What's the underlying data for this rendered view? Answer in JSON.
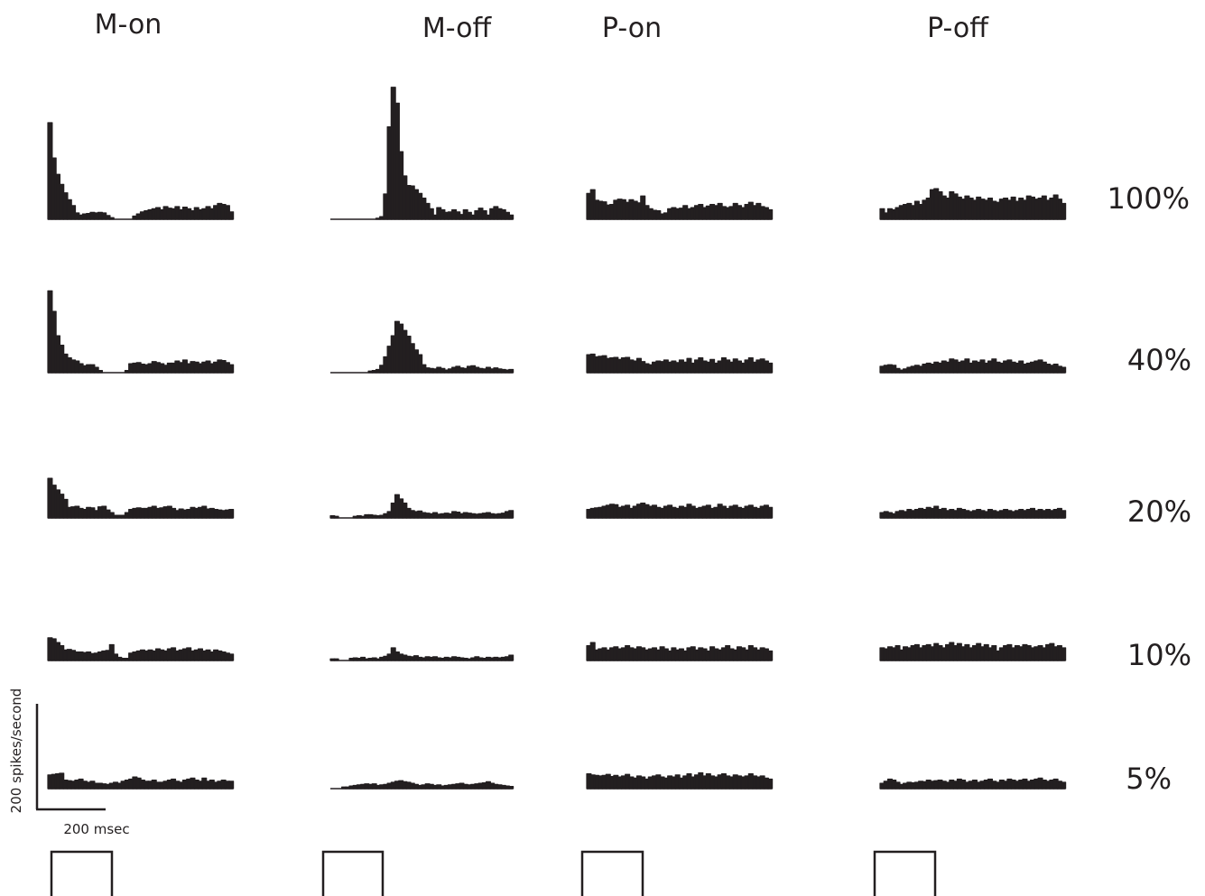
{
  "chart_data": {
    "type": "bar",
    "columns": [
      "M-on",
      "M-off",
      "P-on",
      "P-off"
    ],
    "rows": [
      "100%",
      "40%",
      "20%",
      "10%",
      "5%"
    ],
    "scale_bar": {
      "y_label": "200 spikes/second",
      "y_value": 200,
      "x_label": "200 msec",
      "x_value": 200
    },
    "bins_per_histogram": 48,
    "stimulus_marker": "square",
    "style": {
      "bar_color": "#231f20",
      "background": "#ffffff"
    },
    "histograms": [
      {
        "column": "M-on",
        "row": "100%",
        "values": [
          183,
          116,
          85,
          66,
          50,
          37,
          26,
          12,
          8,
          10,
          11,
          13,
          12,
          13,
          12,
          7,
          3,
          0,
          0,
          0,
          0,
          0,
          6,
          10,
          14,
          16,
          18,
          20,
          22,
          18,
          24,
          21,
          20,
          24,
          18,
          23,
          20,
          16,
          22,
          18,
          20,
          24,
          20,
          26,
          30,
          28,
          26,
          14
        ]
      },
      {
        "column": "M-off",
        "row": "100%",
        "values": [
          0,
          0,
          0,
          0,
          0,
          0,
          0,
          0,
          0,
          0,
          0,
          0,
          2,
          5,
          48,
          175,
          250,
          220,
          128,
          82,
          64,
          63,
          56,
          49,
          40,
          30,
          20,
          8,
          22,
          18,
          13,
          14,
          18,
          14,
          9,
          18,
          13,
          8,
          16,
          21,
          16,
          8,
          20,
          24,
          20,
          18,
          13,
          8
        ]
      },
      {
        "column": "P-on",
        "row": "100%",
        "values": [
          49,
          56,
          36,
          34,
          33,
          27,
          28,
          36,
          38,
          37,
          32,
          37,
          34,
          31,
          44,
          26,
          20,
          17,
          16,
          10,
          12,
          20,
          22,
          20,
          21,
          26,
          20,
          22,
          26,
          28,
          22,
          25,
          28,
          26,
          30,
          24,
          22,
          24,
          30,
          26,
          22,
          28,
          32,
          26,
          30,
          24,
          22,
          18
        ]
      },
      {
        "column": "P-off",
        "row": "100%",
        "values": [
          20,
          12,
          20,
          18,
          22,
          26,
          28,
          30,
          26,
          34,
          28,
          36,
          40,
          56,
          58,
          52,
          44,
          40,
          52,
          48,
          42,
          38,
          44,
          40,
          36,
          42,
          38,
          36,
          40,
          34,
          32,
          38,
          40,
          36,
          42,
          34,
          40,
          36,
          44,
          42,
          38,
          40,
          44,
          36,
          40,
          46,
          38,
          30
        ]
      },
      {
        "column": "M-on",
        "row": "40%",
        "values": [
          155,
          116,
          70,
          52,
          35,
          28,
          24,
          22,
          17,
          13,
          15,
          15,
          10,
          4,
          0,
          0,
          0,
          0,
          0,
          0,
          4,
          17,
          18,
          19,
          16,
          15,
          17,
          21,
          19,
          17,
          14,
          18,
          18,
          22,
          19,
          24,
          17,
          21,
          20,
          17,
          20,
          22,
          17,
          20,
          24,
          23,
          19,
          15
        ]
      },
      {
        "column": "M-off",
        "row": "40%",
        "values": [
          0,
          0,
          0,
          0,
          0,
          0,
          0,
          0,
          0,
          0,
          3,
          4,
          6,
          14,
          30,
          50,
          70,
          97,
          92,
          80,
          69,
          55,
          43,
          34,
          15,
          9,
          8,
          7,
          10,
          8,
          5,
          7,
          10,
          12,
          9,
          8,
          12,
          13,
          10,
          8,
          7,
          10,
          7,
          9,
          7,
          6,
          5,
          6
        ]
      },
      {
        "column": "P-on",
        "row": "40%",
        "values": [
          34,
          35,
          30,
          31,
          32,
          27,
          28,
          29,
          25,
          28,
          29,
          24,
          22,
          27,
          21,
          17,
          15,
          20,
          22,
          21,
          24,
          20,
          22,
          19,
          24,
          20,
          27,
          18,
          24,
          28,
          22,
          20,
          25,
          18,
          22,
          28,
          24,
          20,
          26,
          22,
          18,
          24,
          28,
          20,
          24,
          26,
          22,
          18
        ]
      },
      {
        "column": "P-off",
        "row": "40%",
        "values": [
          12,
          14,
          15,
          14,
          8,
          5,
          7,
          10,
          12,
          14,
          12,
          16,
          18,
          16,
          20,
          18,
          22,
          20,
          26,
          24,
          20,
          22,
          26,
          18,
          22,
          20,
          24,
          18,
          22,
          26,
          20,
          18,
          22,
          24,
          20,
          18,
          22,
          16,
          18,
          20,
          22,
          24,
          20,
          16,
          14,
          16,
          12,
          10
        ]
      },
      {
        "column": "M-on",
        "row": "20%",
        "values": [
          75,
          62,
          53,
          45,
          35,
          20,
          21,
          22,
          18,
          16,
          20,
          19,
          14,
          21,
          22,
          15,
          10,
          5,
          5,
          5,
          10,
          16,
          18,
          19,
          18,
          18,
          20,
          22,
          18,
          19,
          21,
          22,
          18,
          14,
          17,
          15,
          16,
          20,
          18,
          20,
          22,
          17,
          18,
          16,
          15,
          14,
          15,
          16
        ]
      },
      {
        "column": "M-off",
        "row": "20%",
        "values": [
          4,
          3,
          0,
          0,
          0,
          0,
          3,
          4,
          3,
          6,
          6,
          5,
          4,
          5,
          8,
          12,
          28,
          44,
          36,
          28,
          18,
          14,
          12,
          13,
          10,
          9,
          8,
          10,
          7,
          8,
          9,
          8,
          12,
          11,
          8,
          10,
          9,
          8,
          7,
          8,
          9,
          10,
          8,
          7,
          8,
          9,
          12,
          14
        ]
      },
      {
        "column": "P-on",
        "row": "20%",
        "values": [
          16,
          18,
          19,
          20,
          22,
          24,
          26,
          25,
          20,
          22,
          24,
          18,
          22,
          26,
          28,
          25,
          22,
          24,
          20,
          18,
          22,
          24,
          20,
          18,
          22,
          20,
          26,
          22,
          18,
          20,
          22,
          24,
          18,
          20,
          26,
          22,
          18,
          22,
          24,
          20,
          18,
          22,
          24,
          20,
          18,
          22,
          24,
          20
        ]
      },
      {
        "column": "P-off",
        "row": "20%",
        "values": [
          10,
          12,
          10,
          8,
          12,
          14,
          12,
          16,
          14,
          16,
          18,
          16,
          20,
          18,
          22,
          16,
          18,
          14,
          16,
          14,
          18,
          16,
          14,
          12,
          14,
          16,
          14,
          12,
          16,
          14,
          12,
          14,
          16,
          14,
          12,
          14,
          16,
          14,
          16,
          18,
          14,
          16,
          14,
          16,
          14,
          16,
          18,
          14
        ]
      },
      {
        "column": "M-on",
        "row": "10%",
        "values": [
          43,
          41,
          34,
          28,
          20,
          21,
          19,
          16,
          16,
          15,
          16,
          13,
          14,
          16,
          18,
          19,
          30,
          12,
          6,
          4,
          4,
          14,
          16,
          18,
          20,
          18,
          20,
          18,
          22,
          20,
          18,
          22,
          24,
          18,
          20,
          22,
          24,
          18,
          20,
          22,
          18,
          20,
          16,
          20,
          18,
          16,
          14,
          12
        ]
      },
      {
        "column": "M-off",
        "row": "10%",
        "values": [
          3,
          3,
          0,
          0,
          0,
          4,
          5,
          4,
          6,
          3,
          4,
          5,
          3,
          6,
          8,
          12,
          24,
          16,
          12,
          10,
          8,
          7,
          9,
          6,
          5,
          7,
          6,
          7,
          5,
          4,
          6,
          5,
          7,
          6,
          5,
          4,
          3,
          5,
          7,
          5,
          4,
          6,
          5,
          6,
          5,
          6,
          7,
          10
        ]
      },
      {
        "column": "P-on",
        "row": "10%",
        "values": [
          28,
          34,
          20,
          22,
          24,
          20,
          24,
          26,
          22,
          24,
          28,
          24,
          22,
          26,
          24,
          20,
          22,
          24,
          20,
          26,
          22,
          18,
          24,
          20,
          22,
          18,
          24,
          26,
          20,
          24,
          22,
          18,
          26,
          22,
          20,
          24,
          28,
          22,
          20,
          26,
          24,
          20,
          28,
          24,
          20,
          24,
          22,
          18
        ]
      },
      {
        "column": "P-off",
        "row": "10%",
        "values": [
          24,
          22,
          26,
          24,
          28,
          20,
          26,
          24,
          28,
          30,
          24,
          28,
          30,
          26,
          32,
          28,
          24,
          30,
          34,
          28,
          32,
          26,
          30,
          24,
          28,
          32,
          26,
          30,
          24,
          28,
          18,
          24,
          28,
          30,
          24,
          28,
          26,
          30,
          28,
          24,
          26,
          28,
          24,
          30,
          32,
          26,
          28,
          24
        ]
      },
      {
        "column": "M-on",
        "row": "5%",
        "values": [
          26,
          27,
          28,
          29,
          16,
          15,
          14,
          16,
          18,
          14,
          12,
          14,
          10,
          10,
          9,
          8,
          10,
          12,
          10,
          14,
          16,
          18,
          22,
          20,
          16,
          14,
          14,
          16,
          12,
          12,
          14,
          16,
          18,
          14,
          12,
          16,
          18,
          20,
          16,
          14,
          20,
          14,
          16,
          12,
          14,
          16,
          14,
          14
        ]
      },
      {
        "column": "M-off",
        "row": "5%",
        "values": [
          0,
          0,
          0,
          3,
          3,
          5,
          6,
          7,
          8,
          9,
          8,
          9,
          6,
          7,
          8,
          10,
          12,
          14,
          15,
          13,
          12,
          10,
          8,
          6,
          7,
          9,
          8,
          6,
          7,
          5,
          6,
          7,
          8,
          9,
          10,
          8,
          7,
          8,
          9,
          10,
          11,
          13,
          10,
          8,
          7,
          6,
          5,
          4
        ]
      },
      {
        "column": "P-on",
        "row": "5%",
        "values": [
          28,
          26,
          25,
          24,
          25,
          27,
          23,
          25,
          22,
          24,
          27,
          22,
          20,
          24,
          22,
          18,
          22,
          24,
          26,
          22,
          20,
          24,
          22,
          26,
          20,
          24,
          28,
          22,
          26,
          30,
          24,
          28,
          24,
          22,
          26,
          28,
          24,
          22,
          26,
          24,
          22,
          24,
          28,
          24,
          22,
          24,
          20,
          18
        ]
      },
      {
        "column": "P-off",
        "row": "5%",
        "values": [
          10,
          14,
          18,
          16,
          12,
          8,
          10,
          12,
          11,
          12,
          14,
          13,
          16,
          14,
          15,
          16,
          14,
          12,
          16,
          14,
          18,
          16,
          12,
          14,
          16,
          12,
          14,
          16,
          18,
          14,
          12,
          16,
          14,
          18,
          16,
          14,
          16,
          18,
          14,
          16,
          18,
          20,
          16,
          14,
          16,
          18,
          14,
          12
        ]
      }
    ]
  }
}
